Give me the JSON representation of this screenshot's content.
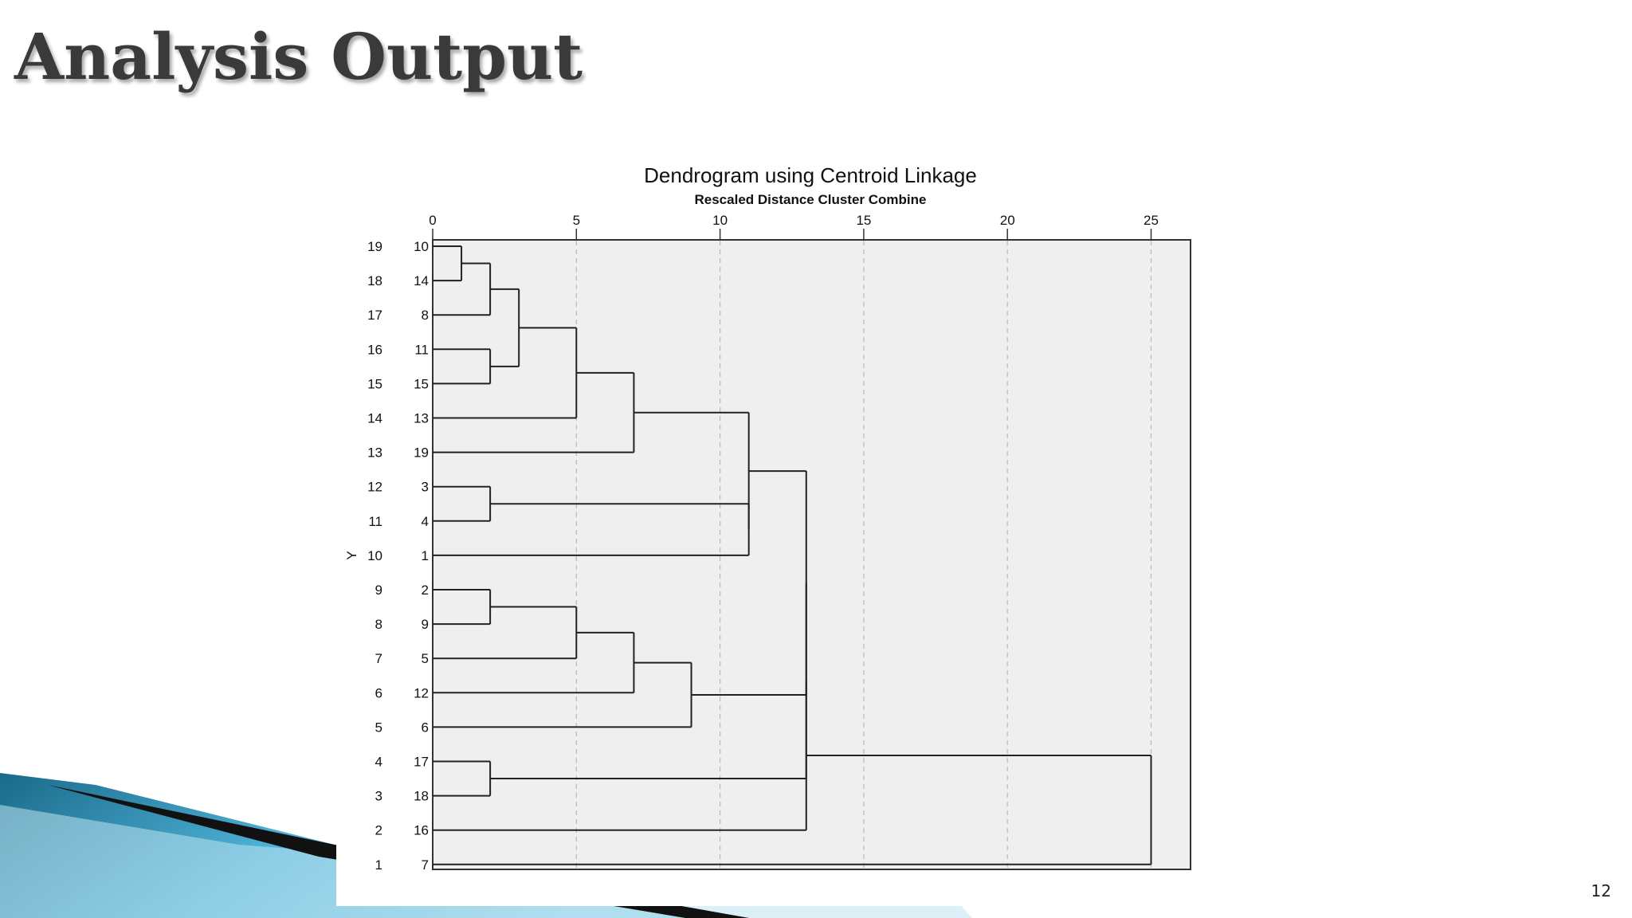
{
  "slide": {
    "title": "Analysis Output",
    "page_number": "12"
  },
  "chart_data": {
    "type": "dendrogram",
    "title": "Dendrogram using Centroid Linkage",
    "subtitle": "Rescaled Distance Cluster Combine",
    "ylabel": "Y",
    "xlim": [
      0,
      25
    ],
    "xticks": [
      0,
      5,
      10,
      15,
      20,
      25
    ],
    "grid": true,
    "rows": [
      19,
      18,
      17,
      16,
      15,
      14,
      13,
      12,
      11,
      10,
      9,
      8,
      7,
      6,
      5,
      4,
      3,
      2,
      1
    ],
    "leaves": [
      "10",
      "14",
      "8",
      "11",
      "15",
      "13",
      "19",
      "3",
      "4",
      "1",
      "2",
      "9",
      "5",
      "12",
      "6",
      "17",
      "18",
      "16",
      "7"
    ],
    "merges": [
      {
        "a": "L0",
        "b": "L1",
        "x": 1
      },
      {
        "a": "M0",
        "b": "L2",
        "x": 2
      },
      {
        "a": "L3",
        "b": "L4",
        "x": 2
      },
      {
        "a": "M1",
        "b": "M2",
        "x": 3
      },
      {
        "a": "M3",
        "b": "L5",
        "x": 5
      },
      {
        "a": "M4",
        "b": "L6",
        "x": 7
      },
      {
        "a": "L7",
        "b": "L8",
        "x": 2
      },
      {
        "a": "M6",
        "b": "L9",
        "x": 11
      },
      {
        "a": "M5",
        "b": "M7",
        "x": 11
      },
      {
        "a": "L10",
        "b": "L11",
        "x": 2
      },
      {
        "a": "M9",
        "b": "L12",
        "x": 5
      },
      {
        "a": "M10",
        "b": "L13",
        "x": 7
      },
      {
        "a": "M11",
        "b": "L14",
        "x": 9
      },
      {
        "a": "L15",
        "b": "L16",
        "x": 2
      },
      {
        "a": "M8",
        "b": "M12",
        "x": 13
      },
      {
        "a": "M14",
        "b": "M13",
        "x": 13
      },
      {
        "a": "M15",
        "b": "L17",
        "x": 13
      },
      {
        "a": "M16",
        "b": "L18",
        "x": 25
      }
    ]
  }
}
